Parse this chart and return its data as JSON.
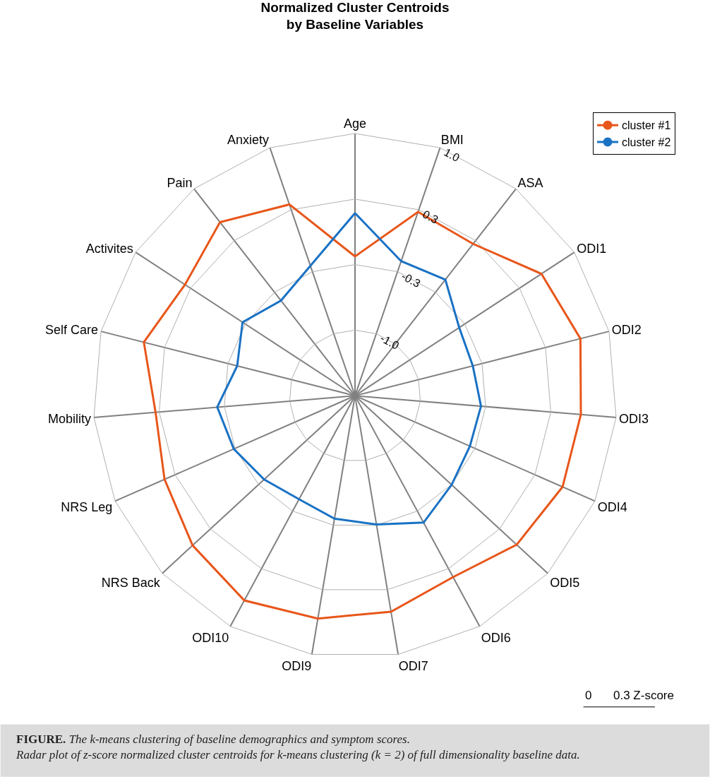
{
  "chart_data": {
    "type": "radar",
    "title": "Normalized Cluster Centroids\nby Baseline Variables",
    "categories": [
      "Age",
      "BMI",
      "ASA",
      "ODI1",
      "ODI2",
      "ODI3",
      "ODI4",
      "ODI5",
      "ODI6",
      "ODI7",
      "ODI9",
      "ODI10",
      "NRS Back",
      "NRS Leg",
      "Mobility",
      "Self Care",
      "Activites",
      "Pain",
      "Anxiety"
    ],
    "series": [
      {
        "name": "cluster #1",
        "color": "#e8561a",
        "values": [
          -0.25,
          0.31,
          0.29,
          0.6,
          0.7,
          0.64,
          0.64,
          0.57,
          0.43,
          0.56,
          0.63,
          0.7,
          0.58,
          0.45,
          0.37,
          0.55,
          0.4,
          0.57,
          0.39
        ]
      },
      {
        "name": "cluster #2",
        "color": "#1a72c4",
        "values": [
          0.19,
          -0.22,
          -0.17,
          -0.4,
          -0.43,
          -0.38,
          -0.39,
          -0.33,
          -0.2,
          -0.34,
          -0.4,
          -0.47,
          -0.41,
          -0.32,
          -0.26,
          -0.43,
          -0.3,
          -0.44,
          -0.27
        ]
      }
    ],
    "ylim": [
      -1.667,
      1.0
    ],
    "yticks": [
      {
        "value": -1.0,
        "label": "-1.0"
      },
      {
        "value": -0.333,
        "label": "-0.3"
      },
      {
        "value": 0.333,
        "label": "0.3"
      },
      {
        "value": 1.0,
        "label": "1.0"
      }
    ],
    "grid": true,
    "legend": "top right",
    "marker": "circle",
    "line_style": "solid",
    "annotations": [
      "0",
      "0.3 Z-score",
      "FIGURE. The k-means clustering of baseline demographics and symptom scores. Radar plot of z-score normalized cluster centroids for k-means clustering (k = 2) of full dimensionality baseline data."
    ]
  }
}
